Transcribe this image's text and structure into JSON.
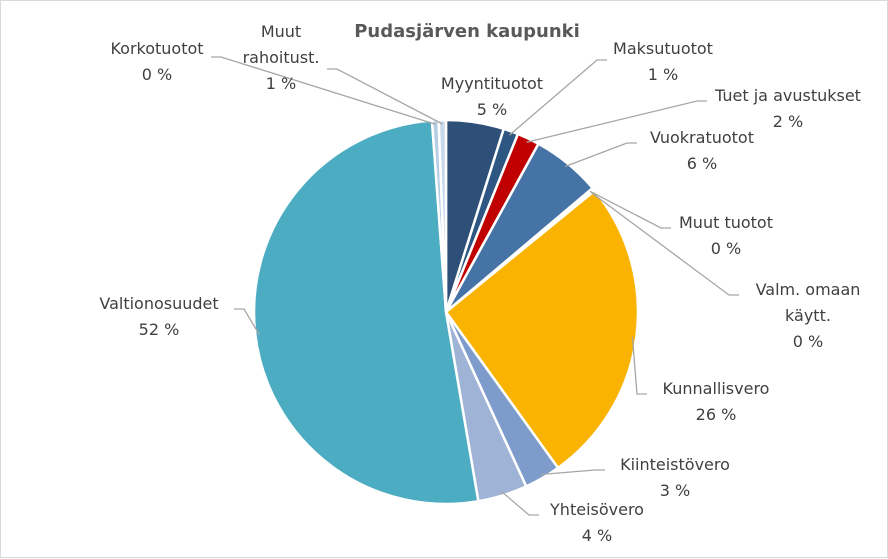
{
  "chart_data": {
    "type": "pie",
    "title": "Pudasjärven kaupunki",
    "slices": [
      {
        "name": "Myyntituotot",
        "name_lines": [
          "Myyntituotot"
        ],
        "value": 5,
        "label": "5 %",
        "color": "#2e4f78"
      },
      {
        "name": "Maksutuotot",
        "name_lines": [
          "Maksutuotot"
        ],
        "value": 1,
        "label": "1 %",
        "color": "#2e5683"
      },
      {
        "name": "Tuet ja avustukset",
        "name_lines": [
          "Tuet ja avustukset"
        ],
        "value": 2,
        "label": "2 %",
        "color": "#c00000"
      },
      {
        "name": "Vuokratuotot",
        "name_lines": [
          "Vuokratuotot"
        ],
        "value": 6,
        "label": "6 %",
        "color": "#4673a6"
      },
      {
        "name": "Muut tuotot",
        "name_lines": [
          "Muut tuotot"
        ],
        "value": 0,
        "label": "0 %",
        "color": "#6f8fbf"
      },
      {
        "name": "Valm. omaan käytt.",
        "name_lines": [
          "Valm. omaan",
          "käytt."
        ],
        "value": 0,
        "label": "0 %",
        "color": "#8ea9d1"
      },
      {
        "name": "Kunnallisvero",
        "name_lines": [
          "Kunnallisvero"
        ],
        "value": 26,
        "label": "26 %",
        "color": "#f9b300"
      },
      {
        "name": "Kiinteistövero",
        "name_lines": [
          "Kiinteistövero"
        ],
        "value": 3,
        "label": "3 %",
        "color": "#7d9ccc"
      },
      {
        "name": "Yhteisövero",
        "name_lines": [
          "Yhteisövero"
        ],
        "value": 4,
        "label": "4 %",
        "color": "#9fb3d6"
      },
      {
        "name": "Valtionosuudet",
        "name_lines": [
          "Valtionosuudet"
        ],
        "value": 52,
        "label": "52 %",
        "color": "#4bacc2"
      },
      {
        "name": "Korkotuotot",
        "name_lines": [
          "Korkotuotot"
        ],
        "value": 0,
        "label": "0 %",
        "color": "#b7cde4"
      },
      {
        "name": "Muut rahoitust.",
        "name_lines": [
          "Muut",
          "rahoitust."
        ],
        "value": 1,
        "label": "1 %",
        "color": "#c9d9ec"
      }
    ]
  }
}
